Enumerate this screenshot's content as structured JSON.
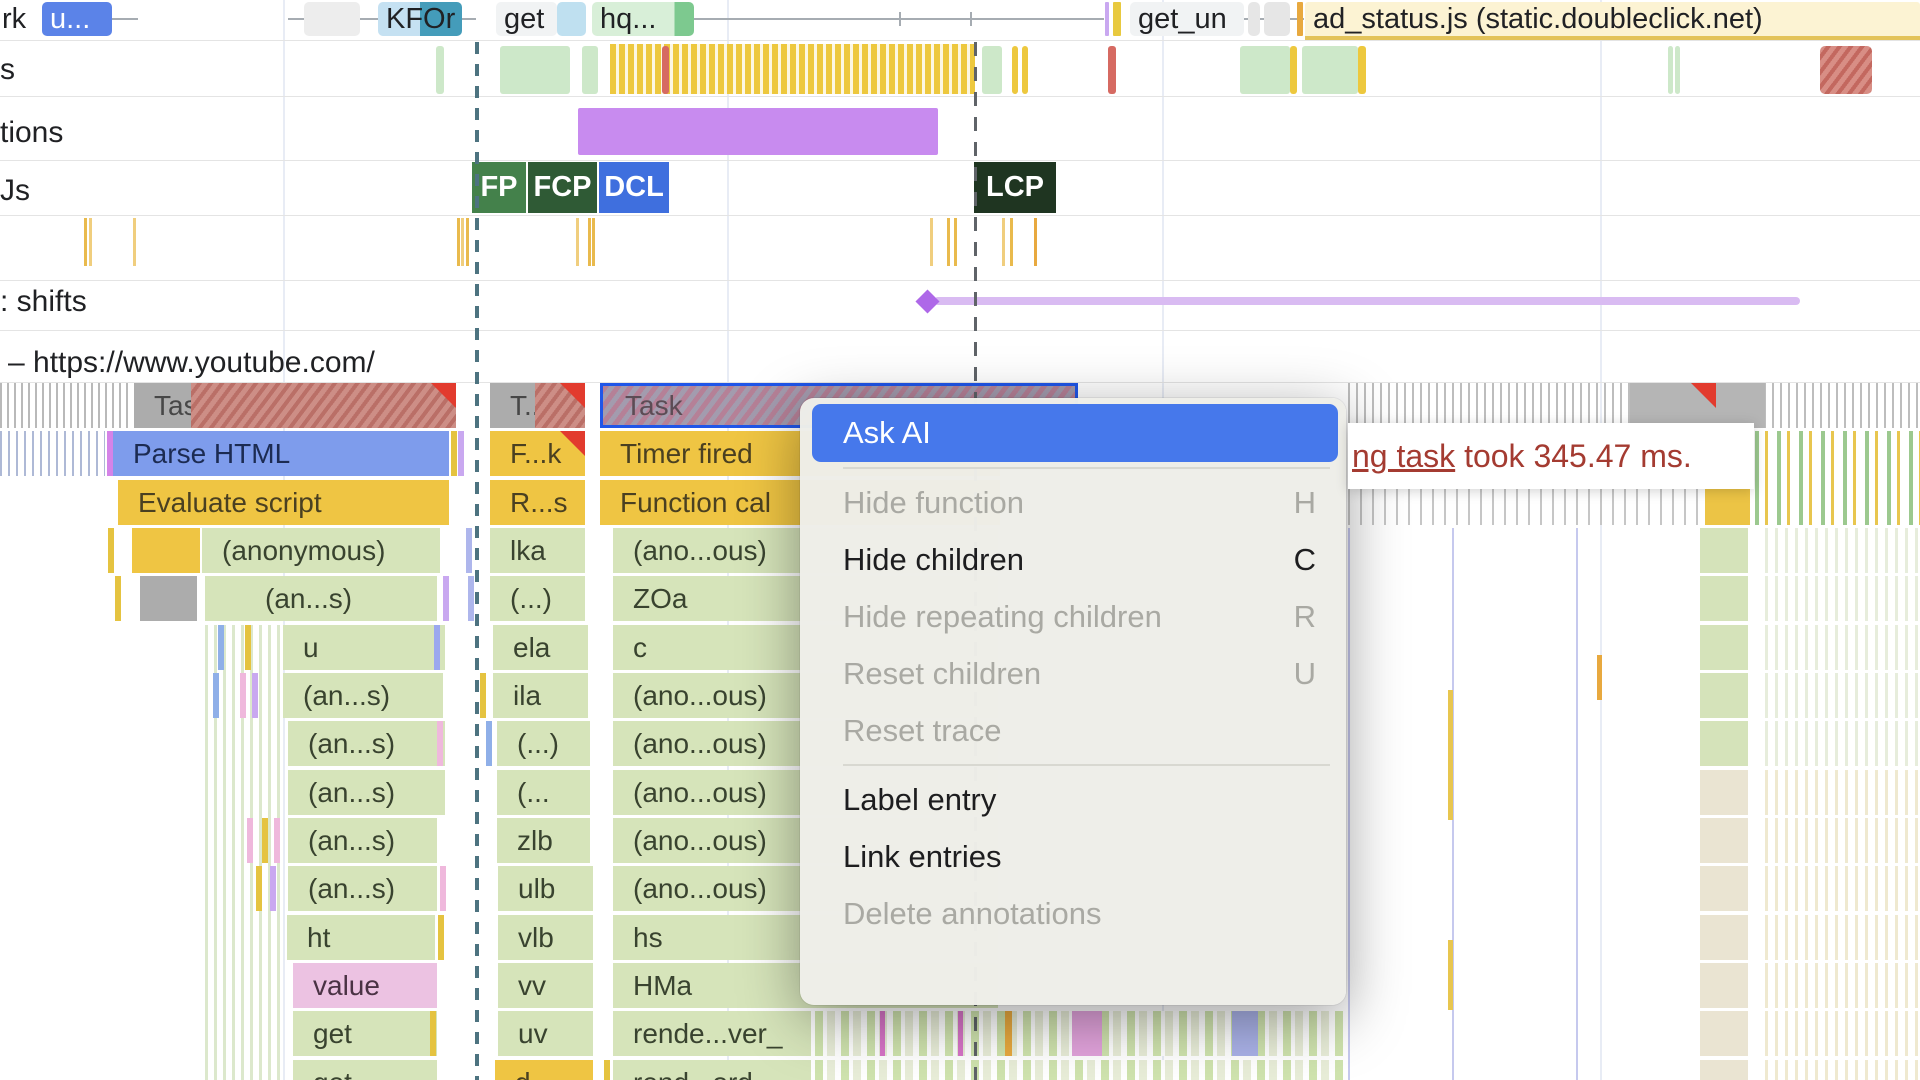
{
  "network": {
    "items": [
      {
        "label": "rk"
      },
      {
        "label": "u..."
      },
      {
        "label": "KFOr"
      },
      {
        "label": "get"
      },
      {
        "label": "hq..."
      },
      {
        "label": "get_un"
      },
      {
        "label": "ad_status.js (static.doubleclick.net)"
      }
    ]
  },
  "track_labels": {
    "cpu": "s",
    "interactions": "tions",
    "timings": "Js",
    "shifts": ": shifts",
    "main": "– https://www.youtube.com/"
  },
  "timing_markers": [
    {
      "label": "FP",
      "color": "#44814B"
    },
    {
      "label": "FCP",
      "color": "#2F5A35"
    },
    {
      "label": "DCL",
      "color": "#3F6FDE"
    },
    {
      "label": "LCP",
      "color": "#1F3521"
    }
  ],
  "context_menu": {
    "items": [
      {
        "label": "Ask AI",
        "shortcut": "",
        "state": "highlighted"
      },
      {
        "type": "separator"
      },
      {
        "label": "Hide function",
        "shortcut": "H",
        "state": "disabled"
      },
      {
        "label": "Hide children",
        "shortcut": "C",
        "state": "enabled"
      },
      {
        "label": "Hide repeating children",
        "shortcut": "R",
        "state": "disabled"
      },
      {
        "label": "Reset children",
        "shortcut": "U",
        "state": "disabled"
      },
      {
        "label": "Reset trace",
        "shortcut": "",
        "state": "disabled"
      },
      {
        "type": "separator"
      },
      {
        "label": "Label entry",
        "shortcut": "",
        "state": "enabled"
      },
      {
        "label": "Link entries",
        "shortcut": "",
        "state": "enabled"
      },
      {
        "label": "Delete annotations",
        "shortcut": "",
        "state": "disabled"
      }
    ]
  },
  "tooltip": {
    "link_text": "ng task",
    "rest_text": " took 345.47 ms."
  },
  "flame": {
    "col_a": [
      {
        "label": "Task",
        "cat": "task"
      },
      {
        "label": "Parse HTML",
        "cat": "parse-html"
      },
      {
        "label": "Evaluate script",
        "cat": "script"
      },
      {
        "label": "(anonymous)",
        "cat": "js"
      },
      {
        "label": "(an...s)",
        "cat": "js"
      },
      {
        "label": "u",
        "cat": "js"
      },
      {
        "label": "(an...s)",
        "cat": "js"
      },
      {
        "label": "(an...s)",
        "cat": "js"
      },
      {
        "label": "(an...s)",
        "cat": "js"
      },
      {
        "label": "(an...s)",
        "cat": "js"
      },
      {
        "label": "(an...s)",
        "cat": "js"
      },
      {
        "label": "ht",
        "cat": "js"
      },
      {
        "label": "value",
        "cat": "value"
      },
      {
        "label": "get",
        "cat": "js"
      },
      {
        "label": "get",
        "cat": "js"
      }
    ],
    "col_b": [
      {
        "label": "T...k",
        "cat": "task"
      },
      {
        "label": "F...k",
        "cat": "script"
      },
      {
        "label": "R...s",
        "cat": "script"
      },
      {
        "label": "lka",
        "cat": "js"
      },
      {
        "label": "(...)",
        "cat": "js"
      },
      {
        "label": "ela",
        "cat": "js"
      },
      {
        "label": "ila",
        "cat": "js"
      },
      {
        "label": "(...)",
        "cat": "js"
      },
      {
        "label": "(...",
        "cat": "js"
      },
      {
        "label": "zlb",
        "cat": "js"
      },
      {
        "label": "ulb",
        "cat": "js"
      },
      {
        "label": "vlb",
        "cat": "js"
      },
      {
        "label": "vv",
        "cat": "js"
      },
      {
        "label": "uv",
        "cat": "js"
      },
      {
        "label": "d",
        "cat": "script"
      }
    ],
    "col_c": [
      {
        "label": "Task",
        "cat": "sel-task"
      },
      {
        "label": "Timer fired",
        "cat": "script"
      },
      {
        "label": "Function cal",
        "cat": "script"
      },
      {
        "label": "(ano...ous)",
        "cat": "js"
      },
      {
        "label": "ZOa",
        "cat": "js"
      },
      {
        "label": "c",
        "cat": "js"
      },
      {
        "label": "(ano...ous)",
        "cat": "js"
      },
      {
        "label": "(ano...ous)",
        "cat": "js"
      },
      {
        "label": "(ano...ous)",
        "cat": "js"
      },
      {
        "label": "(ano...ous)",
        "cat": "js"
      },
      {
        "label": "(ano...ous)",
        "cat": "js"
      },
      {
        "label": "hs",
        "cat": "js"
      },
      {
        "label": "HMa",
        "cat": "js"
      },
      {
        "label": "rende...ver_",
        "cat": "js"
      },
      {
        "label": "rend...ord",
        "cat": "js"
      }
    ]
  }
}
